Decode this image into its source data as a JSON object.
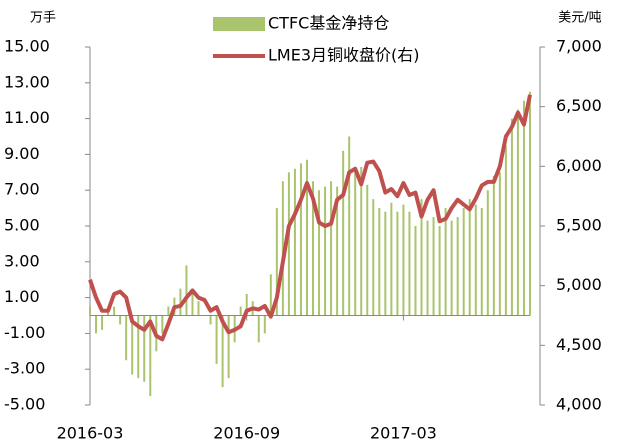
{
  "chart_data": {
    "type": "bar-line",
    "y_label": "万手",
    "y2_label": "美元/吨",
    "categories": [
      "2016-03",
      null,
      null,
      null,
      null,
      null,
      null,
      null,
      null,
      null,
      null,
      null,
      null,
      null,
      null,
      null,
      null,
      null,
      null,
      null,
      null,
      null,
      null,
      null,
      null,
      null,
      "2016-09",
      null,
      null,
      null,
      null,
      null,
      null,
      null,
      null,
      null,
      null,
      null,
      null,
      null,
      null,
      null,
      null,
      null,
      null,
      null,
      null,
      null,
      null,
      null,
      null,
      null,
      "2017-03",
      null,
      null,
      null,
      null,
      null,
      null,
      null,
      null,
      null,
      null,
      null,
      null,
      null,
      null,
      null,
      null,
      null,
      null,
      null,
      null,
      null
    ],
    "series": [
      {
        "name": "CTFC基金净持仓",
        "color": "#a9c46c",
        "type": "bar",
        "axis": "y",
        "values": [
          0.5,
          -1,
          -0.8,
          0.3,
          0.5,
          -0.5,
          -2.5,
          -3.3,
          -3.5,
          -3.7,
          -4.5,
          -2,
          -1,
          0.5,
          1,
          1.5,
          2.8,
          1.5,
          0.8,
          0,
          -0.5,
          -2.7,
          -4,
          -3.5,
          -1.5,
          0.5,
          1.2,
          0.8,
          -1.5,
          -1,
          2.3,
          6,
          7.5,
          8,
          8.2,
          8.5,
          8.7,
          7.5,
          7,
          7.2,
          7.5,
          7.2,
          9.2,
          10,
          8,
          8.3,
          7.3,
          6.5,
          6,
          5.8,
          6.3,
          5.8,
          6.2,
          5.8,
          5,
          6.5,
          5.3,
          5.5,
          5,
          6,
          5.3,
          5.5,
          6,
          6.5,
          6.2,
          6,
          7,
          7.8,
          8,
          9.5,
          11,
          11.5,
          12,
          12.5
        ]
      },
      {
        "name": "LME3月铜收盘价(右)",
        "color": "#c0504d",
        "type": "line",
        "axis": "y2",
        "values": [
          5050,
          4900,
          4790,
          4790,
          4930,
          4950,
          4900,
          4700,
          4660,
          4630,
          4700,
          4580,
          4550,
          4680,
          4820,
          4830,
          4900,
          4960,
          4900,
          4880,
          4790,
          4820,
          4700,
          4610,
          4630,
          4660,
          4790,
          4810,
          4800,
          4830,
          4740,
          4900,
          5200,
          5500,
          5600,
          5720,
          5860,
          5730,
          5530,
          5500,
          5520,
          5720,
          5760,
          5950,
          5980,
          5850,
          6030,
          6040,
          5960,
          5780,
          5810,
          5750,
          5860,
          5760,
          5780,
          5580,
          5720,
          5800,
          5540,
          5560,
          5650,
          5720,
          5680,
          5640,
          5730,
          5840,
          5870,
          5870,
          6000,
          6250,
          6330,
          6450,
          6350,
          6600
        ]
      }
    ],
    "ylim": [
      -5,
      15
    ],
    "yticks": [
      {
        "value": -5,
        "label": "-5.00"
      },
      {
        "value": -3,
        "label": "-3.00"
      },
      {
        "value": -1,
        "label": "-1.00"
      },
      {
        "value": 1,
        "label": "1.00"
      },
      {
        "value": 3,
        "label": "3.00"
      },
      {
        "value": 5,
        "label": "5.00"
      },
      {
        "value": 7,
        "label": "7.00"
      },
      {
        "value": 9,
        "label": "9.00"
      },
      {
        "value": 11,
        "label": "11.00"
      },
      {
        "value": 13,
        "label": "13.00"
      },
      {
        "value": 15,
        "label": "15.00"
      }
    ],
    "y2lim": [
      4000,
      7000
    ],
    "y2ticks": [
      {
        "value": 4000,
        "label": "4,000"
      },
      {
        "value": 4500,
        "label": "4,500"
      },
      {
        "value": 5000,
        "label": "5,000"
      },
      {
        "value": 5500,
        "label": "5,500"
      },
      {
        "value": 6000,
        "label": "6,000"
      },
      {
        "value": 6500,
        "label": "6,500"
      },
      {
        "value": 7000,
        "label": "7,000"
      }
    ],
    "legend": "top"
  }
}
